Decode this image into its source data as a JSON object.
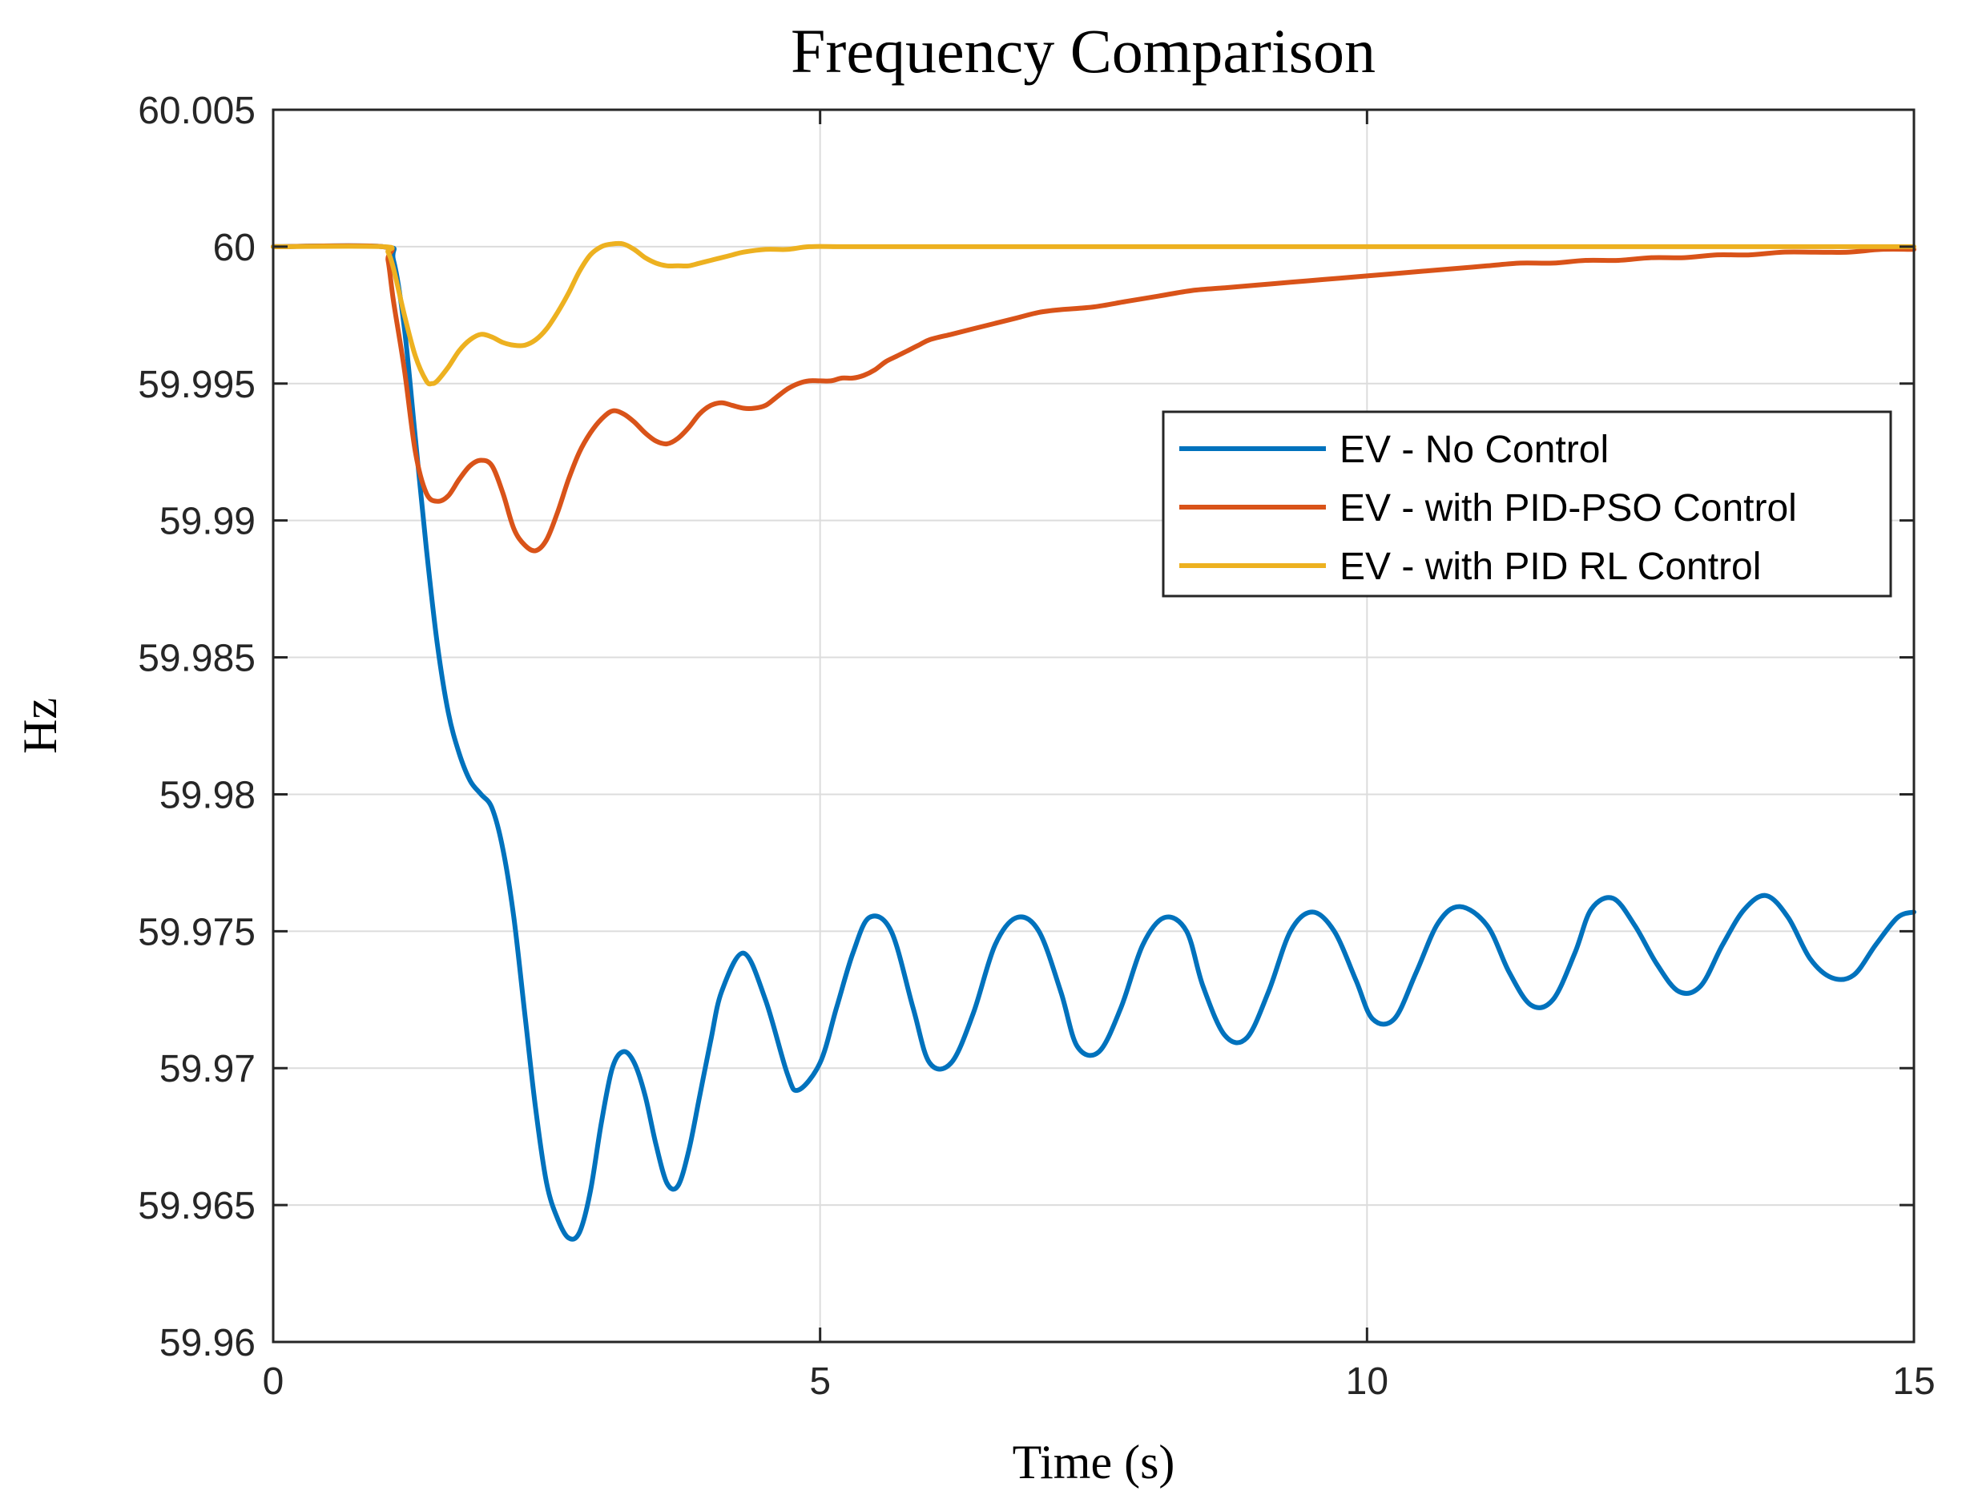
{
  "chart_data": {
    "type": "line",
    "title": "Frequency Comparison",
    "xlabel": "Time (s)",
    "ylabel": "Hz",
    "xlim": [
      0,
      15
    ],
    "ylim": [
      59.96,
      60.005
    ],
    "xticks": [
      0,
      5,
      10,
      15
    ],
    "xtick_labels": [
      "0",
      "5",
      "10",
      "15"
    ],
    "yticks": [
      59.96,
      59.965,
      59.97,
      59.975,
      59.98,
      59.985,
      59.99,
      59.995,
      60,
      60.005
    ],
    "ytick_labels": [
      "59.96",
      "59.965",
      "59.97",
      "59.975",
      "59.98",
      "59.985",
      "59.99",
      "59.995",
      "60",
      "60.005"
    ],
    "grid": true,
    "legend_position": "right",
    "series": [
      {
        "name": "EV - No Control",
        "color": "#0072BD",
        "x": [
          0,
          1.0,
          1.1,
          1.2,
          1.3,
          1.4,
          1.5,
          1.6,
          1.7,
          1.8,
          1.9,
          2.0,
          2.1,
          2.2,
          2.3,
          2.4,
          2.5,
          2.6,
          2.7,
          2.8,
          2.9,
          3.0,
          3.1,
          3.2,
          3.3,
          3.4,
          3.5,
          3.6,
          3.7,
          3.8,
          3.9,
          4.0,
          4.1,
          4.3,
          4.5,
          4.7,
          4.8,
          5.0,
          5.15,
          5.3,
          5.45,
          5.65,
          5.85,
          6.0,
          6.2,
          6.4,
          6.6,
          6.8,
          7.0,
          7.2,
          7.35,
          7.55,
          7.75,
          7.95,
          8.15,
          8.35,
          8.5,
          8.7,
          8.9,
          9.1,
          9.3,
          9.5,
          9.7,
          9.9,
          10.05,
          10.25,
          10.45,
          10.65,
          10.85,
          11.1,
          11.3,
          11.5,
          11.7,
          11.9,
          12.05,
          12.25,
          12.45,
          12.65,
          12.85,
          13.05,
          13.25,
          13.45,
          13.65,
          13.85,
          14.05,
          14.25,
          14.45,
          14.65,
          14.85,
          15.0
        ],
        "values": [
          60.0,
          60.0,
          59.9995,
          59.997,
          59.993,
          59.989,
          59.9855,
          59.983,
          59.9815,
          59.9805,
          59.98,
          59.9795,
          59.978,
          59.9755,
          59.972,
          59.9685,
          59.9658,
          59.9645,
          59.9638,
          59.964,
          59.9655,
          59.968,
          59.97,
          59.9706,
          59.9702,
          59.969,
          59.9672,
          59.9658,
          59.9657,
          59.967,
          59.969,
          59.971,
          59.9728,
          59.9742,
          59.9725,
          59.9698,
          59.9692,
          59.9702,
          59.9722,
          59.9742,
          59.9755,
          59.975,
          59.9722,
          59.9702,
          59.9702,
          59.972,
          59.9745,
          59.9755,
          59.975,
          59.9728,
          59.9708,
          59.9706,
          59.9722,
          59.9745,
          59.9755,
          59.975,
          59.973,
          59.9712,
          59.9711,
          59.9728,
          59.975,
          59.9757,
          59.975,
          59.9732,
          59.9718,
          59.9718,
          59.9735,
          59.9753,
          59.9759,
          59.9752,
          59.9735,
          59.9723,
          59.9725,
          59.9742,
          59.9758,
          59.9762,
          59.9752,
          59.9738,
          59.9728,
          59.973,
          59.9745,
          59.9758,
          59.9763,
          59.9755,
          59.974,
          59.9733,
          59.9734,
          59.9745,
          59.9755,
          59.9757
        ]
      },
      {
        "name": "EV - with PID-PSO Control",
        "color": "#D95319",
        "x": [
          0,
          1.0,
          1.05,
          1.1,
          1.2,
          1.3,
          1.4,
          1.5,
          1.6,
          1.7,
          1.8,
          1.9,
          2.0,
          2.1,
          2.2,
          2.3,
          2.4,
          2.5,
          2.6,
          2.7,
          2.8,
          2.9,
          3.0,
          3.1,
          3.2,
          3.3,
          3.4,
          3.5,
          3.6,
          3.7,
          3.8,
          3.9,
          4.0,
          4.1,
          4.2,
          4.3,
          4.4,
          4.5,
          4.6,
          4.7,
          4.8,
          4.9,
          5.0,
          5.1,
          5.2,
          5.3,
          5.4,
          5.5,
          5.6,
          5.7,
          5.8,
          5.9,
          6.0,
          6.2,
          6.4,
          6.6,
          6.8,
          7.0,
          7.2,
          7.5,
          7.8,
          8.1,
          8.4,
          8.7,
          9.0,
          9.3,
          9.6,
          9.9,
          10.2,
          10.5,
          10.8,
          11.1,
          11.4,
          11.7,
          12.0,
          12.3,
          12.6,
          12.9,
          13.2,
          13.5,
          13.8,
          14.1,
          14.4,
          14.7,
          15.0
        ],
        "values": [
          60.0,
          60.0,
          59.9995,
          59.998,
          59.9955,
          59.9925,
          59.991,
          59.9907,
          59.9909,
          59.9915,
          59.992,
          59.9922,
          59.992,
          59.991,
          59.9897,
          59.9891,
          59.9889,
          59.9893,
          59.9903,
          59.9915,
          59.9925,
          59.9932,
          59.9937,
          59.994,
          59.9939,
          59.9936,
          59.9932,
          59.9929,
          59.9928,
          59.993,
          59.9934,
          59.9939,
          59.9942,
          59.9943,
          59.9942,
          59.9941,
          59.9941,
          59.9942,
          59.9945,
          59.9948,
          59.995,
          59.9951,
          59.9951,
          59.9951,
          59.9952,
          59.9952,
          59.9953,
          59.9955,
          59.9958,
          59.996,
          59.9962,
          59.9964,
          59.9966,
          59.9968,
          59.997,
          59.9972,
          59.9974,
          59.9976,
          59.9977,
          59.9978,
          59.998,
          59.9982,
          59.9984,
          59.9985,
          59.9986,
          59.9987,
          59.9988,
          59.9989,
          59.999,
          59.9991,
          59.9992,
          59.9993,
          59.9994,
          59.9994,
          59.9995,
          59.9995,
          59.9996,
          59.9996,
          59.9997,
          59.9997,
          59.9998,
          59.9998,
          59.9998,
          59.9999,
          59.9999
        ]
      },
      {
        "name": "EV - with PID RL Control",
        "color": "#EDB120",
        "x": [
          0,
          1.0,
          1.05,
          1.1,
          1.2,
          1.3,
          1.4,
          1.45,
          1.5,
          1.6,
          1.7,
          1.8,
          1.9,
          2.0,
          2.1,
          2.2,
          2.3,
          2.4,
          2.5,
          2.6,
          2.7,
          2.8,
          2.9,
          3.0,
          3.1,
          3.2,
          3.3,
          3.4,
          3.5,
          3.6,
          3.7,
          3.8,
          3.9,
          4.0,
          4.1,
          4.2,
          4.3,
          4.5,
          4.7,
          4.9,
          5.2,
          5.6,
          6.0,
          7.0,
          8.0,
          9.0,
          10.0,
          11.0,
          12.0,
          13.0,
          14.0,
          15.0
        ],
        "values": [
          60.0,
          60.0,
          59.9998,
          59.9992,
          59.9975,
          59.996,
          59.9951,
          59.995,
          59.9951,
          59.9956,
          59.9962,
          59.9966,
          59.9968,
          59.9967,
          59.9965,
          59.9964,
          59.9964,
          59.9966,
          59.997,
          59.9976,
          59.9983,
          59.9991,
          59.9997,
          60.0,
          60.0001,
          60.0001,
          59.9999,
          59.9996,
          59.9994,
          59.9993,
          59.9993,
          59.9993,
          59.9994,
          59.9995,
          59.9996,
          59.9997,
          59.9998,
          59.9999,
          59.9999,
          60.0,
          60.0,
          60.0,
          60.0,
          60.0,
          60.0,
          60.0,
          60.0,
          60.0,
          60.0,
          60.0,
          60.0,
          60.0
        ]
      }
    ]
  }
}
